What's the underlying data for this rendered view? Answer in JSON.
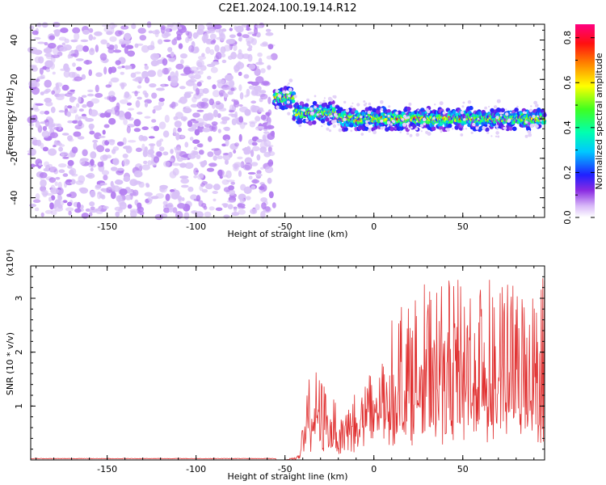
{
  "title": "C2E1.2024.100.19.14.R12",
  "chart_data": [
    {
      "type": "heatmap",
      "xlabel": "Height of straight line (km)",
      "ylabel": "Frequency (Hz)",
      "xlim": [
        -193,
        96
      ],
      "ylim": [
        -50,
        48
      ],
      "x_ticks": [
        -150,
        -100,
        -50,
        0,
        50
      ],
      "y_ticks": [
        -40,
        -20,
        0,
        20,
        40
      ],
      "colorbar": {
        "label": "Normalized spectral amplitude",
        "range": [
          0.0,
          0.86
        ],
        "ticks": [
          0.0,
          0.2,
          0.4,
          0.6,
          0.8
        ],
        "colormap": "rainbow (white-violet-blue-cyan-green-yellow-red-magenta)"
      },
      "regions": [
        {
          "x_range": [
            -193,
            -56
          ],
          "description": "noise",
          "frequency_range": [
            -50,
            48
          ],
          "amplitude_range": [
            0.0,
            0.15
          ]
        },
        {
          "x_range": [
            -56,
            -45
          ],
          "center_frequency": 11,
          "peak_amplitude": 0.8
        },
        {
          "x_range": [
            -45,
            -20
          ],
          "center_frequency": 3,
          "peak_amplitude": 0.75
        },
        {
          "x_range": [
            -20,
            96
          ],
          "center_frequency": 0,
          "peak_amplitude": 0.8
        }
      ]
    },
    {
      "type": "line",
      "xlabel": "Height of straight line (km)",
      "ylabel": "SNR (10 * v/v)",
      "y_multiplier": "(x10⁴)",
      "xlim": [
        -193,
        96
      ],
      "ylim": [
        0,
        3.6
      ],
      "x_ticks": [
        -150,
        -100,
        -50,
        0,
        50
      ],
      "y_ticks": [
        1,
        2,
        3
      ],
      "series": [
        {
          "color": "#e03030",
          "envelope": [
            {
              "x": -193,
              "y": 0.0
            },
            {
              "x": -50,
              "y": 0.0
            },
            {
              "x": -42,
              "y": 0.1
            },
            {
              "x": -38,
              "y": 1.2
            },
            {
              "x": -35,
              "y": 1.8
            },
            {
              "x": -20,
              "y": 1.0
            },
            {
              "x": 0,
              "y": 1.8
            },
            {
              "x": 15,
              "y": 3.0
            },
            {
              "x": 30,
              "y": 3.3
            },
            {
              "x": 60,
              "y": 3.4
            },
            {
              "x": 90,
              "y": 3.2
            },
            {
              "x": 96,
              "y": 3.6
            }
          ]
        }
      ]
    }
  ]
}
